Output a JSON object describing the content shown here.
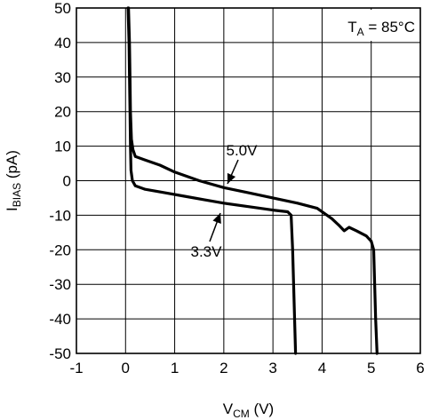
{
  "chart_data": {
    "type": "line",
    "xlabel": {
      "main": "V",
      "sub": "CM",
      "unit": " (V)"
    },
    "ylabel": {
      "main": "I",
      "sub": "BIAS",
      "unit": " (pA)"
    },
    "annotation": {
      "main": "T",
      "sub": "A",
      "rest": " = 85°C"
    },
    "xlim": [
      -1,
      6
    ],
    "ylim": [
      -50,
      50
    ],
    "xticks": [
      -1,
      0,
      1,
      2,
      3,
      4,
      5,
      6
    ],
    "yticks": [
      -50,
      -40,
      -30,
      -20,
      -10,
      0,
      10,
      20,
      30,
      40,
      50
    ],
    "grid": true,
    "series": [
      {
        "name": "5.0V",
        "points": [
          [
            0.06,
            50
          ],
          [
            0.08,
            40
          ],
          [
            0.09,
            30
          ],
          [
            0.1,
            20
          ],
          [
            0.12,
            12
          ],
          [
            0.15,
            9
          ],
          [
            0.2,
            7
          ],
          [
            0.4,
            6
          ],
          [
            0.7,
            4.5
          ],
          [
            1.0,
            2.5
          ],
          [
            1.5,
            0
          ],
          [
            2.0,
            -2
          ],
          [
            2.5,
            -3.5
          ],
          [
            3.0,
            -5
          ],
          [
            3.5,
            -6.5
          ],
          [
            3.9,
            -8
          ],
          [
            4.2,
            -11
          ],
          [
            4.35,
            -13
          ],
          [
            4.45,
            -14.5
          ],
          [
            4.55,
            -13.5
          ],
          [
            4.7,
            -14.5
          ],
          [
            4.9,
            -16
          ],
          [
            5.0,
            -17.5
          ],
          [
            5.05,
            -20
          ],
          [
            5.07,
            -30
          ],
          [
            5.09,
            -40
          ],
          [
            5.12,
            -50
          ]
        ]
      },
      {
        "name": "3.3V",
        "points": [
          [
            0.05,
            50
          ],
          [
            0.07,
            40
          ],
          [
            0.08,
            30
          ],
          [
            0.09,
            20
          ],
          [
            0.1,
            10
          ],
          [
            0.11,
            3
          ],
          [
            0.14,
            0
          ],
          [
            0.2,
            -1.5
          ],
          [
            0.4,
            -2.5
          ],
          [
            0.8,
            -3.5
          ],
          [
            1.2,
            -4.5
          ],
          [
            1.6,
            -5.5
          ],
          [
            2.0,
            -6.5
          ],
          [
            2.5,
            -7.5
          ],
          [
            3.0,
            -8.5
          ],
          [
            3.3,
            -9
          ],
          [
            3.37,
            -10
          ],
          [
            3.4,
            -20
          ],
          [
            3.42,
            -30
          ],
          [
            3.44,
            -40
          ],
          [
            3.46,
            -50
          ]
        ]
      }
    ],
    "labels": [
      {
        "series": 0,
        "text": "5.0V"
      },
      {
        "series": 1,
        "text": "3.3V"
      }
    ]
  }
}
